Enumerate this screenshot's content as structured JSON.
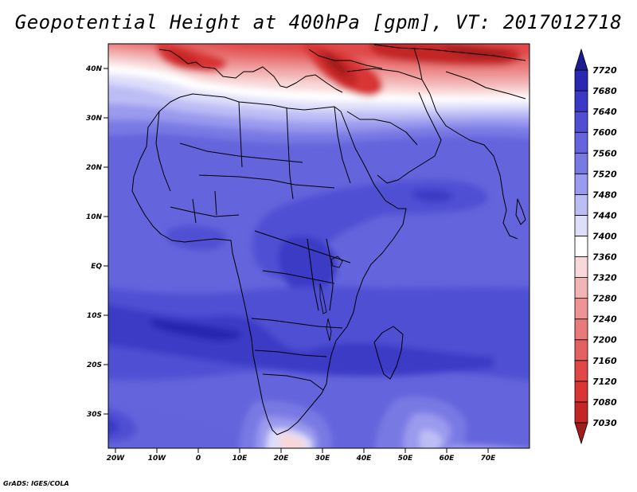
{
  "chart_data": {
    "type": "heatmap",
    "title": "Geopotential Height at 400hPa [gpm], VT: 2017012718",
    "xlabel": "",
    "ylabel": "",
    "x_ticks": [
      "20W",
      "10W",
      "0",
      "10E",
      "20E",
      "30E",
      "40E",
      "50E",
      "60E",
      "70E"
    ],
    "x_tick_values": [
      -20,
      -10,
      0,
      10,
      20,
      30,
      40,
      50,
      60,
      70
    ],
    "y_ticks": [
      "40N",
      "30N",
      "20N",
      "10N",
      "EQ",
      "10S",
      "20S",
      "30S"
    ],
    "y_tick_values": [
      40,
      30,
      20,
      10,
      0,
      -10,
      -20,
      -30
    ],
    "xlim": [
      -22,
      80
    ],
    "ylim": [
      -37,
      45
    ],
    "colorbar": {
      "levels": [
        7030,
        7080,
        7120,
        7160,
        7200,
        7240,
        7280,
        7320,
        7360,
        7400,
        7440,
        7480,
        7520,
        7560,
        7600,
        7640,
        7680,
        7720
      ],
      "colors": [
        "#a31c1c",
        "#c42525",
        "#d93535",
        "#e04848",
        "#e46161",
        "#e97a7a",
        "#ee9494",
        "#f3b4b4",
        "#f8d8d8",
        "#ffffff",
        "#dedefa",
        "#bdbdf5",
        "#9a9aee",
        "#7979e4",
        "#6464dc",
        "#4f4fd4",
        "#3a3ac6",
        "#2828b0",
        "#1c1c90"
      ],
      "extend": "both"
    },
    "grid": false
  },
  "footer": {
    "credit": "GrADS: IGES/COLA"
  }
}
